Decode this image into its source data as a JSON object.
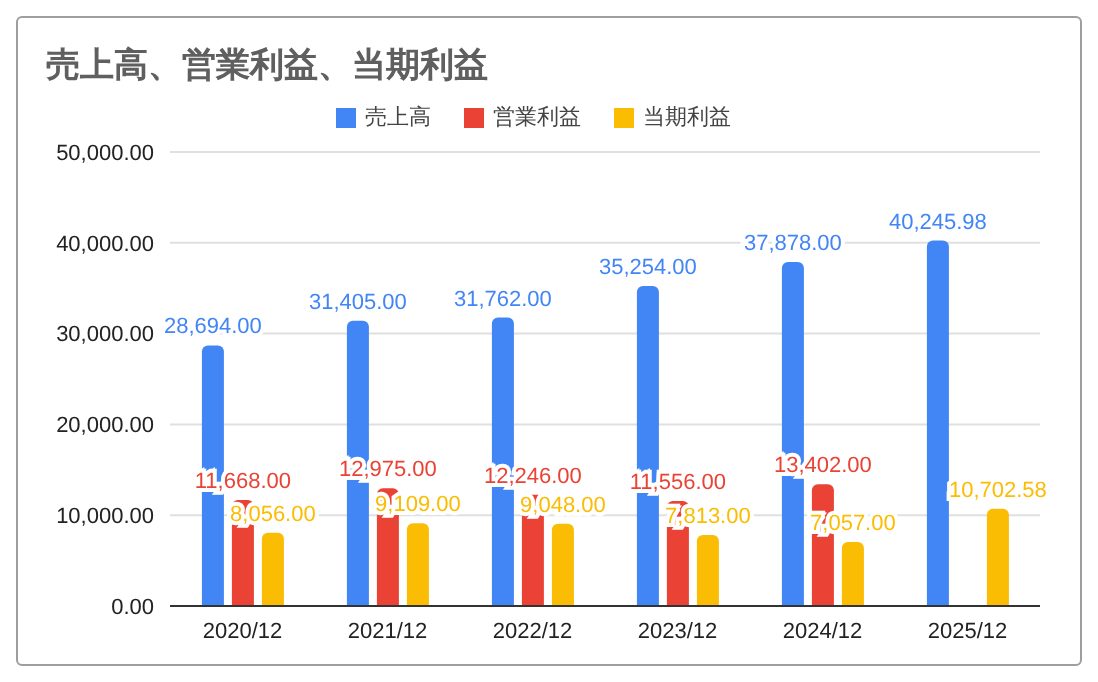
{
  "chart_data": {
    "type": "bar",
    "title": "売上高、営業利益、当期利益",
    "categories": [
      "2020/12",
      "2021/12",
      "2022/12",
      "2023/12",
      "2024/12",
      "2025/12"
    ],
    "series": [
      {
        "name": "売上高",
        "color": "#4285f4",
        "values": [
          28694,
          31405,
          31762,
          35254,
          37878,
          40245.98
        ],
        "value_labels": [
          "28,694.00",
          "31,405.00",
          "31,762.00",
          "35,254.00",
          "37,878.00",
          "40,245.98"
        ]
      },
      {
        "name": "営業利益",
        "color": "#ea4335",
        "values": [
          11668,
          12975,
          12246,
          11556,
          13402,
          null
        ],
        "value_labels": [
          "11,668.00",
          "12,975.00",
          "12,246.00",
          "11,556.00",
          "13,402.00",
          null
        ]
      },
      {
        "name": "当期利益",
        "color": "#fbbc04",
        "values": [
          8056,
          9109,
          9048,
          7813,
          7057,
          10702.58
        ],
        "value_labels": [
          "8,056.00",
          "9,109.00",
          "9,048.00",
          "7,813.00",
          "7,057.00",
          "10,702.58"
        ]
      }
    ],
    "ylim": [
      0,
      50000
    ],
    "yticks": [
      {
        "value": 0,
        "label": "0.00"
      },
      {
        "value": 10000,
        "label": "10,000.00"
      },
      {
        "value": 20000,
        "label": "20,000.00"
      },
      {
        "value": 30000,
        "label": "30,000.00"
      },
      {
        "value": 40000,
        "label": "40,000.00"
      },
      {
        "value": 50000,
        "label": "50,000.00"
      }
    ],
    "grid": "y",
    "legend": "top"
  }
}
